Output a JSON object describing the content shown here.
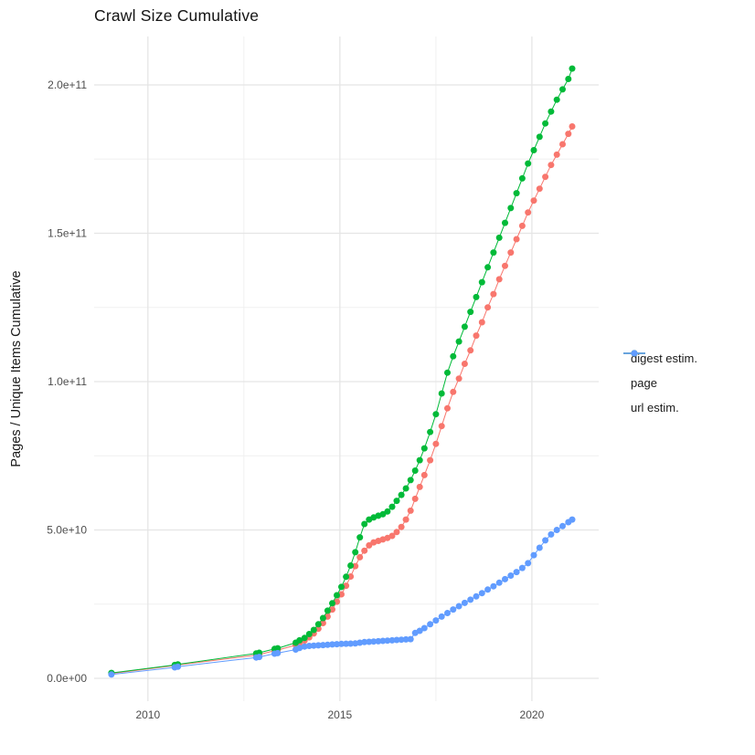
{
  "title": "Crawl Size Cumulative",
  "chart_data": {
    "type": "line",
    "title": "Crawl Size Cumulative",
    "xlabel": "",
    "ylabel": "Pages / Unique Items Cumulative",
    "yunit": "items (cumulative count)",
    "grid": "white panel, light-gray major and minor gridlines, no axis lines (ggplot theme_minimal style)",
    "legend_position": "right",
    "xlim": [
      2008.6,
      2021.74
    ],
    "ylim": [
      -7700000000.0,
      216300000000.0
    ],
    "x_ticks": {
      "values": [
        2010,
        2015,
        2020
      ],
      "labels": [
        "2010",
        "2015",
        "2020"
      ]
    },
    "x_minor_ticks": [
      2012.5,
      2017.5
    ],
    "y_ticks": {
      "values": [
        0,
        50000000000.0,
        100000000000.0,
        150000000000.0,
        200000000000.0
      ],
      "labels": [
        "0.0e+00",
        "5.0e+10",
        "1.0e+11",
        "1.5e+11",
        "2.0e+11"
      ]
    },
    "y_minor_ticks": [
      25000000000.0,
      75000000000.0,
      125000000000.0,
      175000000000.0
    ],
    "x": [
      2009.05,
      2010.7,
      2010.78,
      2012.82,
      2012.9,
      2013.3,
      2013.38,
      2013.85,
      2013.95,
      2014.08,
      2014.2,
      2014.32,
      2014.44,
      2014.56,
      2014.68,
      2014.8,
      2014.92,
      2015.04,
      2015.16,
      2015.28,
      2015.4,
      2015.52,
      2015.64,
      2015.76,
      2015.88,
      2016.0,
      2016.12,
      2016.24,
      2016.36,
      2016.48,
      2016.6,
      2016.72,
      2016.84,
      2016.96,
      2017.08,
      2017.2,
      2017.35,
      2017.5,
      2017.65,
      2017.8,
      2017.95,
      2018.1,
      2018.25,
      2018.4,
      2018.55,
      2018.7,
      2018.85,
      2019.0,
      2019.15,
      2019.3,
      2019.45,
      2019.6,
      2019.75,
      2019.9,
      2020.05,
      2020.2,
      2020.35,
      2020.5,
      2020.65,
      2020.8,
      2020.95,
      2021.05
    ],
    "series": [
      {
        "name": "digest estim.",
        "color": "#F8766D",
        "values": [
          1600000000.0,
          4300000000.0,
          4500000000.0,
          7800000000.0,
          8000000000.0,
          9300000000.0,
          9500000000.0,
          11200000000.0,
          11900000000.0,
          12700000000.0,
          13800000000.0,
          15100000000.0,
          16700000000.0,
          18600000000.0,
          20800000000.0,
          23200000000.0,
          25800000000.0,
          28300000000.0,
          31200000000.0,
          34300000000.0,
          37800000000.0,
          40800000000.0,
          43000000000.0,
          44800000000.0,
          45800000000.0,
          46300000000.0,
          46800000000.0,
          47300000000.0,
          48000000000.0,
          49300000000.0,
          51000000000.0,
          53500000000.0,
          56500000000.0,
          60500000000.0,
          64500000000.0,
          68500000000.0,
          73500000000.0,
          79000000000.0,
          85000000000.0,
          91000000000.0,
          96500000000.0,
          101000000000.0,
          106000000000.0,
          110500000000.0,
          115500000000.0,
          120000000000.0,
          125000000000.0,
          129500000000.0,
          134500000000.0,
          139000000000.0,
          143500000000.0,
          148000000000.0,
          152500000000.0,
          157000000000.0,
          161000000000.0,
          165000000000.0,
          169000000000.0,
          173000000000.0,
          176500000000.0,
          180000000000.0,
          183500000000.0,
          186000000000.0
        ]
      },
      {
        "name": "page",
        "color": "#00BA38",
        "values": [
          1800000000.0,
          4500000000.0,
          4700000000.0,
          8400000000.0,
          8600000000.0,
          9900000000.0,
          10100000000.0,
          12000000000.0,
          12800000000.0,
          13600000000.0,
          14900000000.0,
          16300000000.0,
          18200000000.0,
          20300000000.0,
          22800000000.0,
          25300000000.0,
          28000000000.0,
          30800000000.0,
          34200000000.0,
          38000000000.0,
          42500000000.0,
          47500000000.0,
          52000000000.0,
          53500000000.0,
          54200000000.0,
          54800000000.0,
          55300000000.0,
          56200000000.0,
          57800000000.0,
          59800000000.0,
          61800000000.0,
          64000000000.0,
          66800000000.0,
          70000000000.0,
          73500000000.0,
          77500000000.0,
          83000000000.0,
          89000000000.0,
          96000000000.0,
          103000000000.0,
          108500000000.0,
          113500000000.0,
          118500000000.0,
          123500000000.0,
          128500000000.0,
          133500000000.0,
          138500000000.0,
          143500000000.0,
          148500000000.0,
          153500000000.0,
          158500000000.0,
          163500000000.0,
          168500000000.0,
          173500000000.0,
          178000000000.0,
          182500000000.0,
          187000000000.0,
          191000000000.0,
          195000000000.0,
          198500000000.0,
          202000000000.0,
          205500000000.0
        ]
      },
      {
        "name": "url estim.",
        "color": "#619CFF",
        "values": [
          1300000000.0,
          3700000000.0,
          3900000000.0,
          7000000000.0,
          7200000000.0,
          8300000000.0,
          8500000000.0,
          9700000000.0,
          10200000000.0,
          10700000000.0,
          10900000000.0,
          11000000000.0,
          11100000000.0,
          11200000000.0,
          11300000000.0,
          11400000000.0,
          11500000000.0,
          11600000000.0,
          11650000000.0,
          11700000000.0,
          11750000000.0,
          12000000000.0,
          12200000000.0,
          12300000000.0,
          12400000000.0,
          12500000000.0,
          12600000000.0,
          12700000000.0,
          12800000000.0,
          12900000000.0,
          13000000000.0,
          13100000000.0,
          13200000000.0,
          15300000000.0,
          16000000000.0,
          16900000000.0,
          18200000000.0,
          19500000000.0,
          20800000000.0,
          22000000000.0,
          23200000000.0,
          24300000000.0,
          25400000000.0,
          26500000000.0,
          27600000000.0,
          28700000000.0,
          29900000000.0,
          31000000000.0,
          32200000000.0,
          33400000000.0,
          34600000000.0,
          35800000000.0,
          37200000000.0,
          38800000000.0,
          41500000000.0,
          44000000000.0,
          46500000000.0,
          48500000000.0,
          50000000000.0,
          51300000000.0,
          52600000000.0,
          53500000000.0
        ]
      }
    ],
    "style": {
      "point_radius": 3.5,
      "line_width": 1,
      "grid_major_color": "#E5E5E5",
      "grid_minor_color": "#F0F0F0",
      "tick_label_color": "#4D4D4D",
      "text_color": "#1a1a1a"
    }
  }
}
